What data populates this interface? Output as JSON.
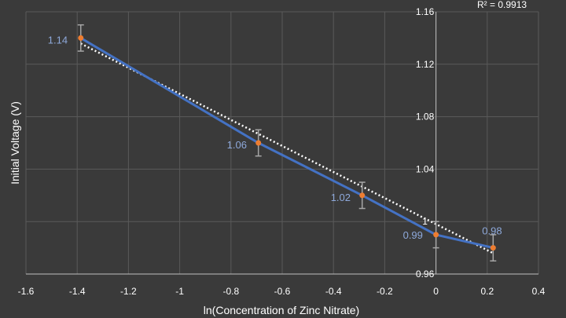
{
  "chart_data": {
    "type": "scatter",
    "xlabel": "ln(Concentration of Zinc Nitrate)",
    "ylabel": "Initial Voltage (V)",
    "xlim": [
      -1.6,
      0.4
    ],
    "ylim": [
      0.96,
      1.16
    ],
    "x_ticks": [
      "-1.6",
      "-1.4",
      "-1.2",
      "-1",
      "-0.8",
      "-0.6",
      "-0.4",
      "-0.2",
      "0",
      "0.2",
      "0.4"
    ],
    "y_ticks": [
      "0.96",
      "1",
      "1.04",
      "1.08",
      "1.12",
      "1.16"
    ],
    "grid": true,
    "series": [
      {
        "x": [
          -1.386,
          -0.693,
          -0.288,
          0.0,
          0.223
        ],
        "y": [
          1.14,
          1.06,
          1.02,
          0.99,
          0.98
        ],
        "labels": [
          "1.14",
          "1.06",
          "1.02",
          "0.99",
          "0.98"
        ],
        "error": [
          0.01,
          0.01,
          0.01,
          0.01,
          0.01
        ]
      }
    ],
    "trendline": {
      "x": [
        -1.386,
        0.223
      ],
      "y": [
        1.1358,
        0.9759
      ],
      "r_squared_label": "R² = 0.9913"
    },
    "colors": {
      "series_line": "#4472c4",
      "markers": "#ed7d31",
      "error_bars": "#a6a6a6",
      "trendline": "#ffffff",
      "labels": "#8ea9db",
      "grid": "#5a5a5a"
    }
  }
}
